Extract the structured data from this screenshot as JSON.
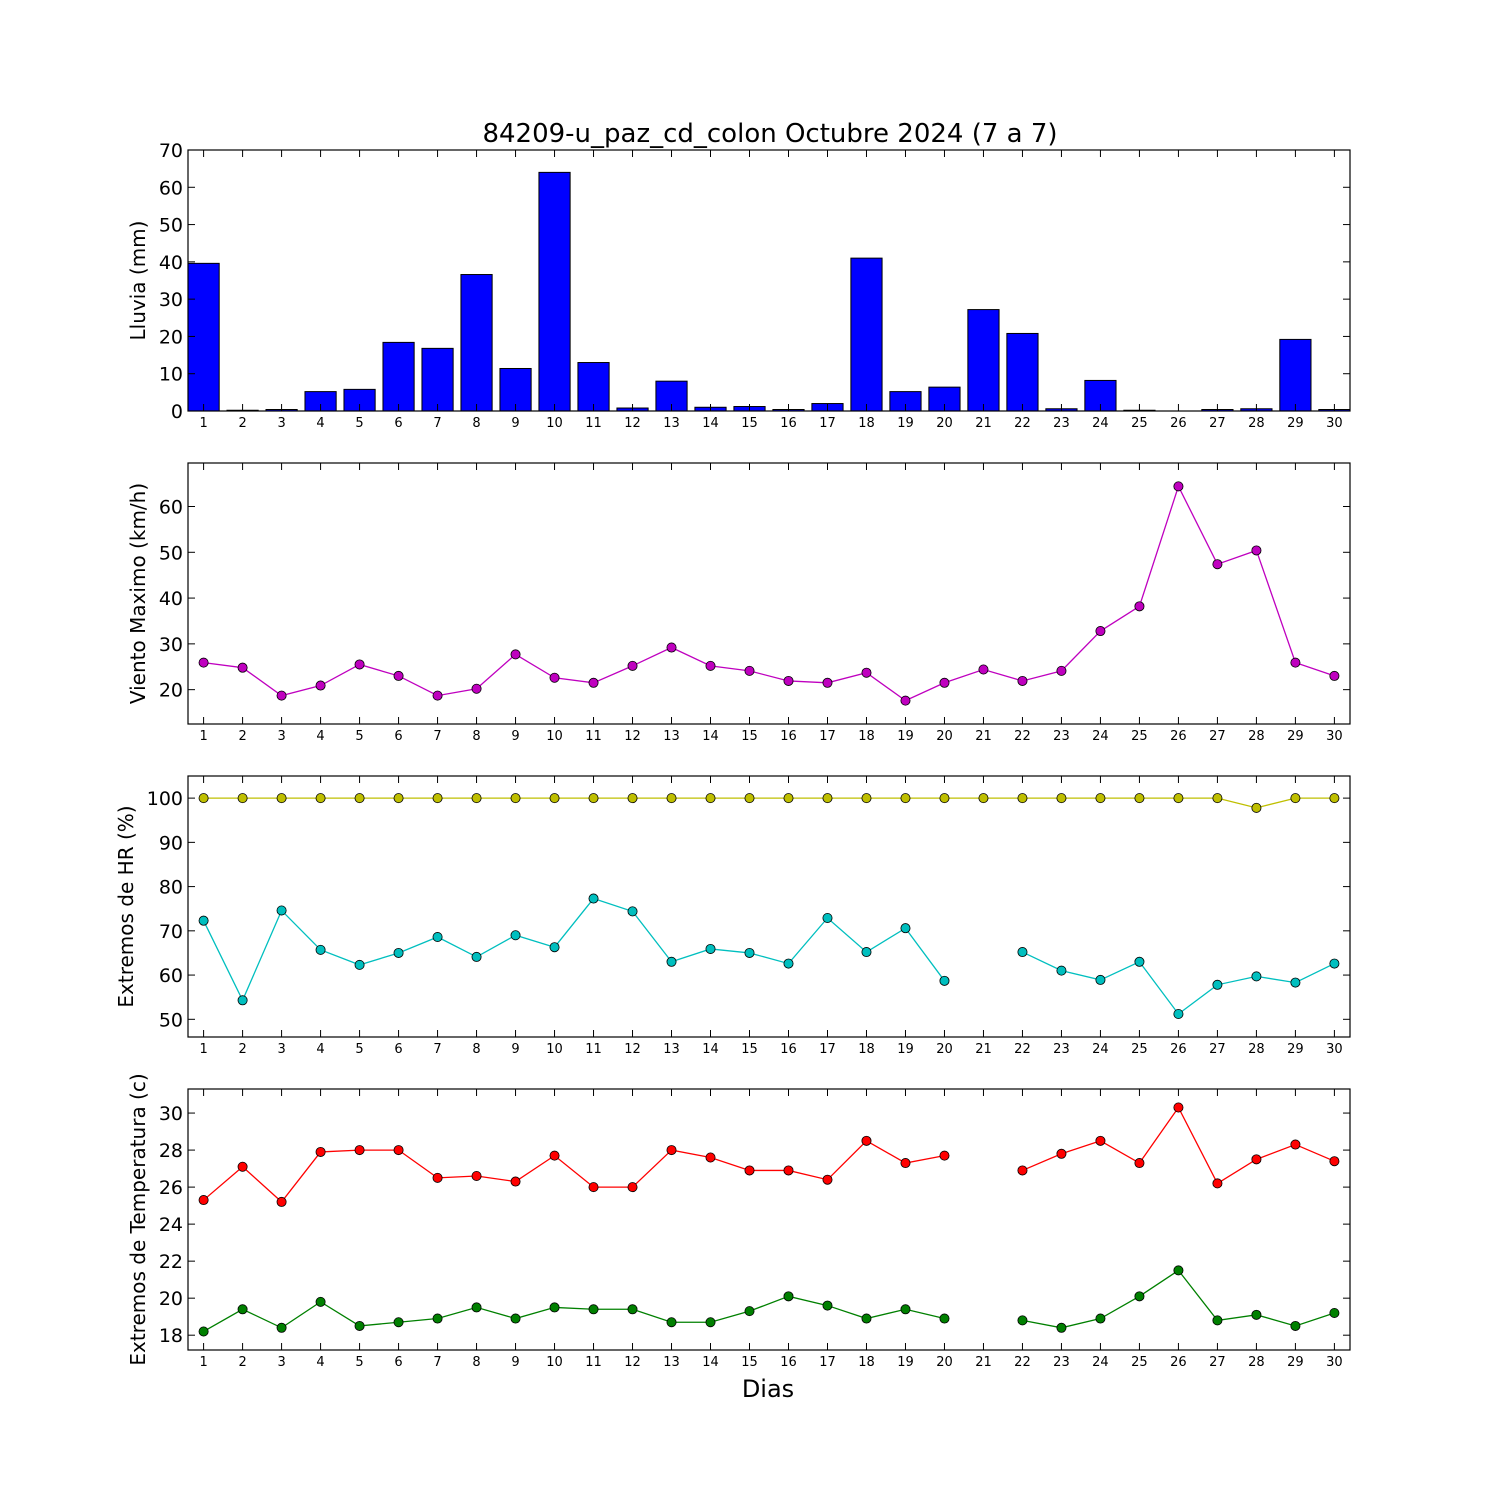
{
  "chart_data": {
    "title": "84209-u_paz_cd_colon Octubre 2024  (7 a 7)",
    "xlabel": "Dias",
    "days": [
      1,
      2,
      3,
      4,
      5,
      6,
      7,
      8,
      9,
      10,
      11,
      12,
      13,
      14,
      15,
      16,
      17,
      18,
      19,
      20,
      21,
      22,
      23,
      24,
      25,
      26,
      27,
      28,
      29,
      30
    ],
    "panels": [
      {
        "type": "bar",
        "ylabel": "Lluvia (mm)",
        "ylim": [
          0,
          70
        ],
        "yticks": [
          0,
          10,
          20,
          30,
          40,
          50,
          60,
          70
        ],
        "series": [
          {
            "color": "#0000ff",
            "values": [
              39.6,
              0.2,
              0.4,
              5.2,
              5.8,
              18.4,
              16.8,
              36.6,
              11.4,
              64.0,
              13.0,
              0.8,
              8.0,
              1.0,
              1.2,
              0.4,
              2.0,
              41.0,
              5.2,
              6.4,
              27.2,
              20.8,
              0.6,
              8.2,
              0.2,
              0.0,
              0.4,
              0.6,
              19.2,
              0.4
            ]
          }
        ]
      },
      {
        "type": "line",
        "ylabel": "Viento Maximo (km/h)",
        "ylim": [
          12.5,
          69.5
        ],
        "yticks": [
          20,
          30,
          40,
          50,
          60
        ],
        "series": [
          {
            "color": "#bf00bf",
            "values": [
              25.9,
              24.8,
              18.7,
              20.9,
              25.5,
              23.0,
              18.7,
              20.2,
              27.7,
              22.6,
              21.5,
              25.2,
              29.2,
              25.2,
              24.1,
              21.9,
              21.5,
              23.7,
              17.6,
              21.5,
              24.4,
              21.9,
              24.1,
              32.8,
              38.2,
              64.4,
              47.4,
              50.4,
              25.9,
              23.0
            ]
          }
        ]
      },
      {
        "type": "line",
        "ylabel": "Extremos de HR (%)",
        "ylim": [
          46,
          105
        ],
        "yticks": [
          50,
          60,
          70,
          80,
          90,
          100
        ],
        "series": [
          {
            "color": "#bfbf00",
            "values": [
              100,
              100,
              100,
              100,
              100,
              100,
              100,
              100,
              100,
              100,
              100,
              100,
              100,
              100,
              100,
              100,
              100,
              100,
              100,
              100,
              100,
              100,
              100,
              100,
              100,
              100,
              100,
              97.8,
              100,
              100
            ]
          },
          {
            "color": "#00bfbf",
            "values": [
              72.3,
              54.3,
              74.6,
              65.7,
              62.3,
              65.0,
              68.6,
              64.1,
              69.0,
              66.3,
              77.3,
              74.4,
              63.0,
              65.9,
              65.0,
              62.6,
              72.9,
              65.2,
              70.6,
              58.7,
              null,
              65.2,
              61.0,
              58.9,
              63.0,
              51.2,
              57.8,
              59.7,
              58.3,
              62.6
            ]
          }
        ]
      },
      {
        "type": "line",
        "ylabel": "Extremos de Temperatura (c)",
        "ylim": [
          17.2,
          31.3
        ],
        "yticks": [
          18,
          20,
          22,
          24,
          26,
          28,
          30
        ],
        "series": [
          {
            "color": "#ff0000",
            "values": [
              25.3,
              27.1,
              25.2,
              27.9,
              28.0,
              28.0,
              26.5,
              26.6,
              26.3,
              27.7,
              26.0,
              26.0,
              28.0,
              27.6,
              26.9,
              26.9,
              26.4,
              28.5,
              27.3,
              27.7,
              null,
              26.9,
              27.8,
              28.5,
              27.3,
              30.3,
              26.2,
              27.5,
              28.3,
              27.4
            ]
          },
          {
            "color": "#008000",
            "values": [
              18.2,
              19.4,
              18.4,
              19.8,
              18.5,
              18.7,
              18.9,
              19.5,
              18.9,
              19.5,
              19.4,
              19.4,
              18.7,
              18.7,
              19.3,
              20.1,
              19.6,
              18.9,
              19.4,
              18.9,
              null,
              18.8,
              18.4,
              18.9,
              20.1,
              21.5,
              18.8,
              19.1,
              18.5,
              19.2
            ]
          }
        ]
      }
    ]
  }
}
